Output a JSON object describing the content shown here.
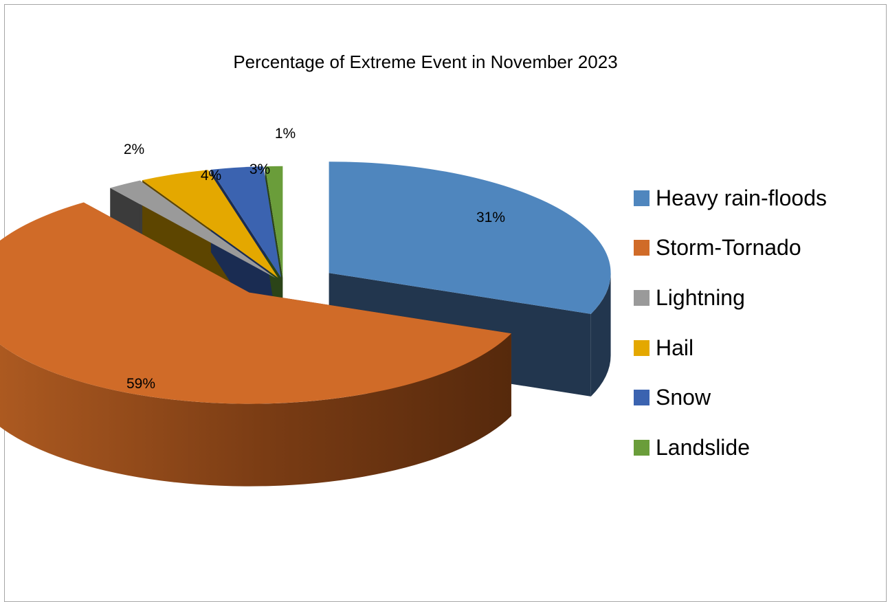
{
  "chart_data": {
    "type": "pie",
    "title": "Percentage of Extreme Event in November 2023",
    "slices": [
      {
        "name": "Heavy rain-floods",
        "value": 31,
        "label": "31%",
        "color": "#4f86be",
        "side_color": "#22364e"
      },
      {
        "name": "Storm-Tornado",
        "value": 59,
        "label": "59%",
        "color": "#d06b28",
        "side_color": "#8a4315"
      },
      {
        "name": "Lightning",
        "value": 2,
        "label": "2%",
        "color": "#9a9a9a",
        "side_color": "#3b3b3b"
      },
      {
        "name": "Hail",
        "value": 4,
        "label": "4%",
        "color": "#e4a800",
        "side_color": "#5d4500"
      },
      {
        "name": "Snow",
        "value": 3,
        "label": "3%",
        "color": "#3b63b0",
        "side_color": "#1a2c52"
      },
      {
        "name": "Landslide",
        "value": 1,
        "label": "1%",
        "color": "#6a9d3a",
        "side_color": "#2b4418"
      }
    ],
    "style": "3d-exploded",
    "legend_position": "right"
  }
}
